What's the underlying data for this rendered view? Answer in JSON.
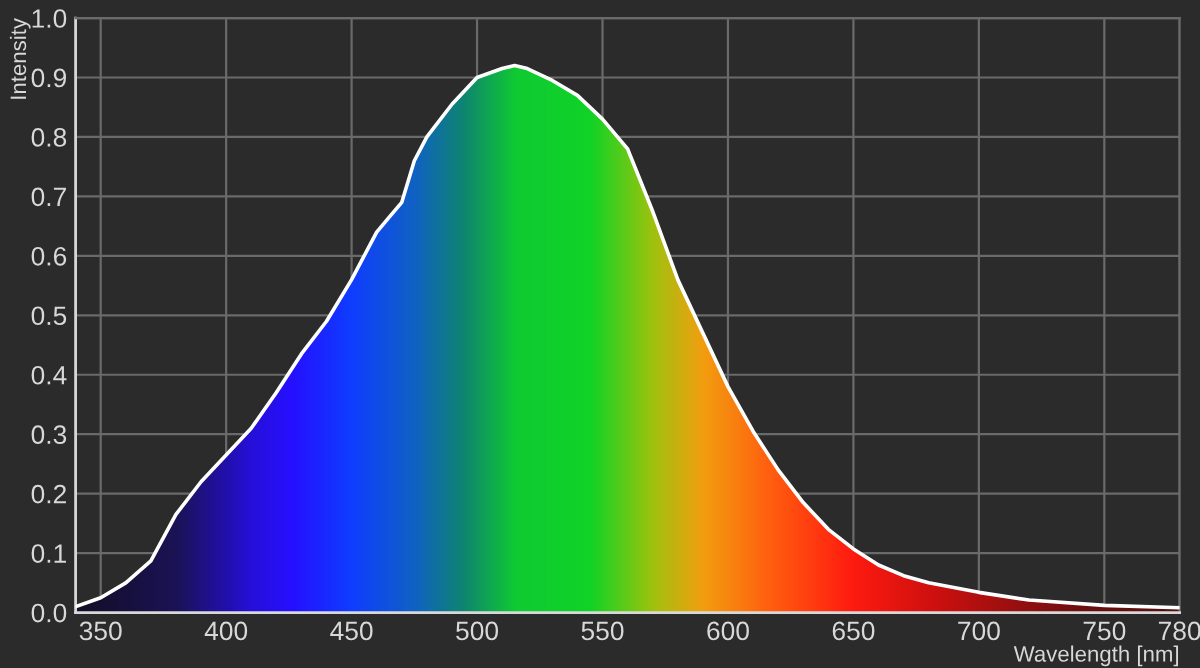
{
  "chart_data": {
    "type": "area",
    "xlabel": "Wavelength [nm]",
    "ylabel": "Intensity",
    "x": [
      340,
      350,
      360,
      370,
      380,
      390,
      400,
      410,
      420,
      430,
      440,
      450,
      460,
      465,
      470,
      475,
      480,
      490,
      500,
      510,
      515,
      520,
      530,
      540,
      550,
      560,
      570,
      580,
      590,
      600,
      610,
      620,
      630,
      640,
      650,
      660,
      670,
      680,
      700,
      720,
      750,
      780
    ],
    "series": [
      {
        "color": "#ffffff",
        "values": [
          0.01,
          0.025,
          0.05,
          0.087,
          0.165,
          0.22,
          0.265,
          0.31,
          0.37,
          0.435,
          0.49,
          0.56,
          0.64,
          0.665,
          0.69,
          0.76,
          0.8,
          0.855,
          0.9,
          0.915,
          0.92,
          0.915,
          0.895,
          0.87,
          0.83,
          0.78,
          0.675,
          0.56,
          0.47,
          0.38,
          0.305,
          0.24,
          0.185,
          0.14,
          0.107,
          0.08,
          0.062,
          0.05,
          0.034,
          0.021,
          0.012,
          0.008
        ]
      }
    ],
    "xlim": [
      340,
      780
    ],
    "xticks": [
      350,
      400,
      450,
      500,
      550,
      600,
      650,
      700,
      750,
      780
    ],
    "ylim": [
      0,
      1.0
    ],
    "yticks": [
      {
        "value": 0,
        "label": "0.0"
      },
      0.1,
      0.2,
      0.3,
      0.4,
      0.5,
      0.6,
      0.7,
      0.8,
      0.9,
      {
        "value": 1.0,
        "label": "1.0"
      }
    ],
    "grid": true,
    "legend": false
  }
}
